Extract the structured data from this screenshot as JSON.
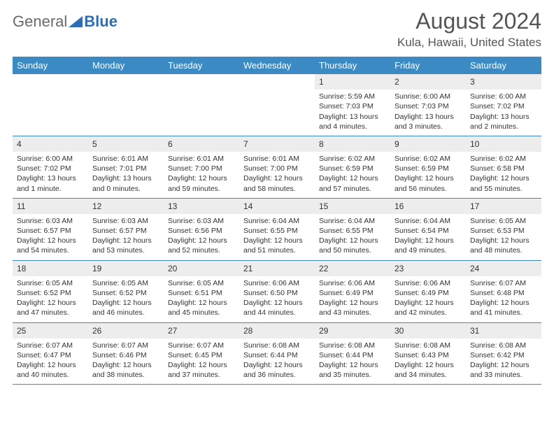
{
  "logo": {
    "part1": "General",
    "part2": "Blue"
  },
  "title": "August 2024",
  "location": "Kula, Hawaii, United States",
  "colors": {
    "header_bg": "#3b8ac4",
    "header_text": "#ffffff",
    "daynum_bg": "#ededed",
    "border": "#3b8ac4",
    "text": "#333333",
    "logo_gray": "#6a6a6a",
    "logo_blue": "#2d6fb5"
  },
  "day_names": [
    "Sunday",
    "Monday",
    "Tuesday",
    "Wednesday",
    "Thursday",
    "Friday",
    "Saturday"
  ],
  "weeks": [
    [
      {
        "day": "",
        "sunrise": "",
        "sunset": "",
        "daylight": ""
      },
      {
        "day": "",
        "sunrise": "",
        "sunset": "",
        "daylight": ""
      },
      {
        "day": "",
        "sunrise": "",
        "sunset": "",
        "daylight": ""
      },
      {
        "day": "",
        "sunrise": "",
        "sunset": "",
        "daylight": ""
      },
      {
        "day": "1",
        "sunrise": "Sunrise: 5:59 AM",
        "sunset": "Sunset: 7:03 PM",
        "daylight": "Daylight: 13 hours and 4 minutes."
      },
      {
        "day": "2",
        "sunrise": "Sunrise: 6:00 AM",
        "sunset": "Sunset: 7:03 PM",
        "daylight": "Daylight: 13 hours and 3 minutes."
      },
      {
        "day": "3",
        "sunrise": "Sunrise: 6:00 AM",
        "sunset": "Sunset: 7:02 PM",
        "daylight": "Daylight: 13 hours and 2 minutes."
      }
    ],
    [
      {
        "day": "4",
        "sunrise": "Sunrise: 6:00 AM",
        "sunset": "Sunset: 7:02 PM",
        "daylight": "Daylight: 13 hours and 1 minute."
      },
      {
        "day": "5",
        "sunrise": "Sunrise: 6:01 AM",
        "sunset": "Sunset: 7:01 PM",
        "daylight": "Daylight: 13 hours and 0 minutes."
      },
      {
        "day": "6",
        "sunrise": "Sunrise: 6:01 AM",
        "sunset": "Sunset: 7:00 PM",
        "daylight": "Daylight: 12 hours and 59 minutes."
      },
      {
        "day": "7",
        "sunrise": "Sunrise: 6:01 AM",
        "sunset": "Sunset: 7:00 PM",
        "daylight": "Daylight: 12 hours and 58 minutes."
      },
      {
        "day": "8",
        "sunrise": "Sunrise: 6:02 AM",
        "sunset": "Sunset: 6:59 PM",
        "daylight": "Daylight: 12 hours and 57 minutes."
      },
      {
        "day": "9",
        "sunrise": "Sunrise: 6:02 AM",
        "sunset": "Sunset: 6:59 PM",
        "daylight": "Daylight: 12 hours and 56 minutes."
      },
      {
        "day": "10",
        "sunrise": "Sunrise: 6:02 AM",
        "sunset": "Sunset: 6:58 PM",
        "daylight": "Daylight: 12 hours and 55 minutes."
      }
    ],
    [
      {
        "day": "11",
        "sunrise": "Sunrise: 6:03 AM",
        "sunset": "Sunset: 6:57 PM",
        "daylight": "Daylight: 12 hours and 54 minutes."
      },
      {
        "day": "12",
        "sunrise": "Sunrise: 6:03 AM",
        "sunset": "Sunset: 6:57 PM",
        "daylight": "Daylight: 12 hours and 53 minutes."
      },
      {
        "day": "13",
        "sunrise": "Sunrise: 6:03 AM",
        "sunset": "Sunset: 6:56 PM",
        "daylight": "Daylight: 12 hours and 52 minutes."
      },
      {
        "day": "14",
        "sunrise": "Sunrise: 6:04 AM",
        "sunset": "Sunset: 6:55 PM",
        "daylight": "Daylight: 12 hours and 51 minutes."
      },
      {
        "day": "15",
        "sunrise": "Sunrise: 6:04 AM",
        "sunset": "Sunset: 6:55 PM",
        "daylight": "Daylight: 12 hours and 50 minutes."
      },
      {
        "day": "16",
        "sunrise": "Sunrise: 6:04 AM",
        "sunset": "Sunset: 6:54 PM",
        "daylight": "Daylight: 12 hours and 49 minutes."
      },
      {
        "day": "17",
        "sunrise": "Sunrise: 6:05 AM",
        "sunset": "Sunset: 6:53 PM",
        "daylight": "Daylight: 12 hours and 48 minutes."
      }
    ],
    [
      {
        "day": "18",
        "sunrise": "Sunrise: 6:05 AM",
        "sunset": "Sunset: 6:52 PM",
        "daylight": "Daylight: 12 hours and 47 minutes."
      },
      {
        "day": "19",
        "sunrise": "Sunrise: 6:05 AM",
        "sunset": "Sunset: 6:52 PM",
        "daylight": "Daylight: 12 hours and 46 minutes."
      },
      {
        "day": "20",
        "sunrise": "Sunrise: 6:05 AM",
        "sunset": "Sunset: 6:51 PM",
        "daylight": "Daylight: 12 hours and 45 minutes."
      },
      {
        "day": "21",
        "sunrise": "Sunrise: 6:06 AM",
        "sunset": "Sunset: 6:50 PM",
        "daylight": "Daylight: 12 hours and 44 minutes."
      },
      {
        "day": "22",
        "sunrise": "Sunrise: 6:06 AM",
        "sunset": "Sunset: 6:49 PM",
        "daylight": "Daylight: 12 hours and 43 minutes."
      },
      {
        "day": "23",
        "sunrise": "Sunrise: 6:06 AM",
        "sunset": "Sunset: 6:49 PM",
        "daylight": "Daylight: 12 hours and 42 minutes."
      },
      {
        "day": "24",
        "sunrise": "Sunrise: 6:07 AM",
        "sunset": "Sunset: 6:48 PM",
        "daylight": "Daylight: 12 hours and 41 minutes."
      }
    ],
    [
      {
        "day": "25",
        "sunrise": "Sunrise: 6:07 AM",
        "sunset": "Sunset: 6:47 PM",
        "daylight": "Daylight: 12 hours and 40 minutes."
      },
      {
        "day": "26",
        "sunrise": "Sunrise: 6:07 AM",
        "sunset": "Sunset: 6:46 PM",
        "daylight": "Daylight: 12 hours and 38 minutes."
      },
      {
        "day": "27",
        "sunrise": "Sunrise: 6:07 AM",
        "sunset": "Sunset: 6:45 PM",
        "daylight": "Daylight: 12 hours and 37 minutes."
      },
      {
        "day": "28",
        "sunrise": "Sunrise: 6:08 AM",
        "sunset": "Sunset: 6:44 PM",
        "daylight": "Daylight: 12 hours and 36 minutes."
      },
      {
        "day": "29",
        "sunrise": "Sunrise: 6:08 AM",
        "sunset": "Sunset: 6:44 PM",
        "daylight": "Daylight: 12 hours and 35 minutes."
      },
      {
        "day": "30",
        "sunrise": "Sunrise: 6:08 AM",
        "sunset": "Sunset: 6:43 PM",
        "daylight": "Daylight: 12 hours and 34 minutes."
      },
      {
        "day": "31",
        "sunrise": "Sunrise: 6:08 AM",
        "sunset": "Sunset: 6:42 PM",
        "daylight": "Daylight: 12 hours and 33 minutes."
      }
    ]
  ]
}
